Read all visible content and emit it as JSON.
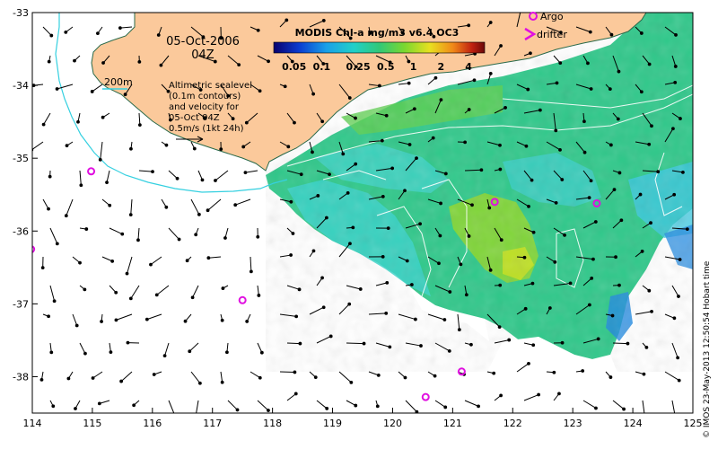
{
  "map": {
    "date_line1": "05-Oct-2006",
    "date_line2": "04Z",
    "colorbar_title": "MODIS Chl-a mg/m3 v6.4 OC3",
    "colorbar_ticks": [
      "0.05",
      "0.1",
      "0.25",
      "0.5",
      "1",
      "2",
      "4"
    ],
    "colorbar_colors": [
      "#08006e",
      "#0a3cd0",
      "#1aa0e8",
      "#20d0c8",
      "#30c878",
      "#7ad830",
      "#e8e020",
      "#f08818",
      "#c02010",
      "#6a0808"
    ],
    "legend": {
      "argo_label": "Argo",
      "drifter_label": "drifter",
      "isobath_label": "200m",
      "sealevel_lines": [
        "Altimetric sealevel",
        "(0.1m contours)",
        "and velocity for",
        "05-Oct 04Z"
      ],
      "scale_label": "0.5m/s (1kt 24h)"
    },
    "x_ticks": [
      "114",
      "115",
      "116",
      "117",
      "118",
      "119",
      "120",
      "121",
      "122",
      "123",
      "124",
      "125"
    ],
    "y_ticks": [
      "-33",
      "-34",
      "-35",
      "-36",
      "-37",
      "-38"
    ],
    "credit": "© IMOS 23-May-2013 12:50:54 Hobart time",
    "land_color": "#fbc99b",
    "isobath_color": "#35d0e0",
    "argo_color": "#e010e0",
    "argo_floats": [
      {
        "lon": 114.98,
        "lat": -35.18
      },
      {
        "lon": 113.98,
        "lat": -36.25
      },
      {
        "lon": 117.5,
        "lat": -36.95
      },
      {
        "lon": 121.7,
        "lat": -35.6
      },
      {
        "lon": 123.4,
        "lat": -35.62
      },
      {
        "lon": 121.15,
        "lat": -37.93
      },
      {
        "lon": 120.55,
        "lat": -38.28
      }
    ]
  }
}
